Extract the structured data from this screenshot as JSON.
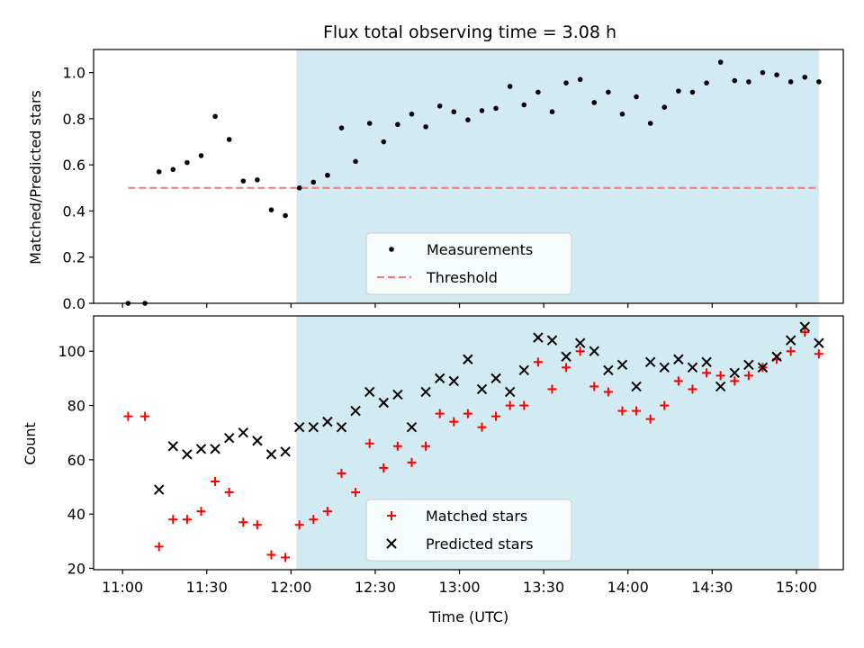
{
  "title": "Flux total observing time = 3.08 h",
  "xlabel": "Time (UTC)",
  "x_ticks": [
    "11:00",
    "11:30",
    "12:00",
    "12:30",
    "13:00",
    "13:30",
    "14:00",
    "14:30",
    "15:00"
  ],
  "shaded_region": {
    "start": "12:02",
    "end": "15:08",
    "color": "#add8e6"
  },
  "chart_data": [
    {
      "type": "scatter",
      "ylabel": "Matched/Predicted stars",
      "ylim": [
        0,
        1.1
      ],
      "y_ticks": [
        "0.0",
        "0.2",
        "0.4",
        "0.6",
        "0.8",
        "1.0"
      ],
      "threshold": {
        "name": "Threshold",
        "value": 0.5,
        "x_start": "11:02",
        "x_end": "15:08",
        "color": "#f08080"
      },
      "series": [
        {
          "name": "Measurements",
          "color": "#000000",
          "marker": "dot",
          "points": [
            [
              "11:02",
              0.0
            ],
            [
              "11:08",
              0.0
            ],
            [
              "11:13",
              0.57
            ],
            [
              "11:18",
              0.58
            ],
            [
              "11:23",
              0.61
            ],
            [
              "11:28",
              0.64
            ],
            [
              "11:33",
              0.81
            ],
            [
              "11:38",
              0.71
            ],
            [
              "11:43",
              0.53
            ],
            [
              "11:48",
              0.535
            ],
            [
              "11:53",
              0.405
            ],
            [
              "11:58",
              0.38
            ],
            [
              "12:03",
              0.5
            ],
            [
              "12:08",
              0.525
            ],
            [
              "12:13",
              0.555
            ],
            [
              "12:18",
              0.76
            ],
            [
              "12:23",
              0.615
            ],
            [
              "12:28",
              0.78
            ],
            [
              "12:33",
              0.7
            ],
            [
              "12:38",
              0.775
            ],
            [
              "12:43",
              0.82
            ],
            [
              "12:48",
              0.765
            ],
            [
              "12:53",
              0.855
            ],
            [
              "12:58",
              0.83
            ],
            [
              "13:03",
              0.795
            ],
            [
              "13:08",
              0.835
            ],
            [
              "13:13",
              0.845
            ],
            [
              "13:18",
              0.94
            ],
            [
              "13:23",
              0.86
            ],
            [
              "13:28",
              0.915
            ],
            [
              "13:33",
              0.83
            ],
            [
              "13:38",
              0.955
            ],
            [
              "13:43",
              0.97
            ],
            [
              "13:48",
              0.87
            ],
            [
              "13:53",
              0.915
            ],
            [
              "13:58",
              0.82
            ],
            [
              "14:03",
              0.895
            ],
            [
              "14:08",
              0.78
            ],
            [
              "14:13",
              0.85
            ],
            [
              "14:18",
              0.92
            ],
            [
              "14:23",
              0.915
            ],
            [
              "14:28",
              0.955
            ],
            [
              "14:33",
              1.045
            ],
            [
              "14:38",
              0.965
            ],
            [
              "14:43",
              0.96
            ],
            [
              "14:48",
              1.0
            ],
            [
              "14:53",
              0.99
            ],
            [
              "14:58",
              0.96
            ],
            [
              "15:03",
              0.98
            ],
            [
              "15:08",
              0.96
            ]
          ]
        }
      ]
    },
    {
      "type": "scatter",
      "ylabel": "Count",
      "ylim": [
        19.5,
        113
      ],
      "y_ticks": [
        "20",
        "40",
        "60",
        "80",
        "100"
      ],
      "series": [
        {
          "name": "Matched stars",
          "color": "#ff0000",
          "marker": "plus",
          "points": [
            [
              "11:02",
              76
            ],
            [
              "11:08",
              76
            ],
            [
              "11:13",
              28
            ],
            [
              "11:18",
              38
            ],
            [
              "11:23",
              38
            ],
            [
              "11:28",
              41
            ],
            [
              "11:33",
              52
            ],
            [
              "11:38",
              48
            ],
            [
              "11:43",
              37
            ],
            [
              "11:48",
              36
            ],
            [
              "11:53",
              25
            ],
            [
              "11:58",
              24
            ],
            [
              "12:03",
              36
            ],
            [
              "12:08",
              38
            ],
            [
              "12:13",
              41
            ],
            [
              "12:18",
              55
            ],
            [
              "12:23",
              48
            ],
            [
              "12:28",
              66
            ],
            [
              "12:33",
              57
            ],
            [
              "12:38",
              65
            ],
            [
              "12:43",
              59
            ],
            [
              "12:48",
              65
            ],
            [
              "12:53",
              77
            ],
            [
              "12:58",
              74
            ],
            [
              "13:03",
              77
            ],
            [
              "13:08",
              72
            ],
            [
              "13:13",
              76
            ],
            [
              "13:18",
              80
            ],
            [
              "13:23",
              80
            ],
            [
              "13:28",
              96
            ],
            [
              "13:33",
              86
            ],
            [
              "13:38",
              94
            ],
            [
              "13:43",
              100
            ],
            [
              "13:48",
              87
            ],
            [
              "13:53",
              85
            ],
            [
              "13:58",
              78
            ],
            [
              "14:03",
              78
            ],
            [
              "14:08",
              75
            ],
            [
              "14:13",
              80
            ],
            [
              "14:18",
              89
            ],
            [
              "14:23",
              86
            ],
            [
              "14:28",
              92
            ],
            [
              "14:33",
              91
            ],
            [
              "14:38",
              89
            ],
            [
              "14:43",
              91
            ],
            [
              "14:48",
              94
            ],
            [
              "14:53",
              97
            ],
            [
              "14:58",
              100
            ],
            [
              "15:03",
              107
            ],
            [
              "15:08",
              99
            ]
          ]
        },
        {
          "name": "Predicted stars",
          "color": "#000000",
          "marker": "x",
          "points": [
            [
              "11:13",
              49
            ],
            [
              "11:18",
              65
            ],
            [
              "11:23",
              62
            ],
            [
              "11:28",
              64
            ],
            [
              "11:33",
              64
            ],
            [
              "11:38",
              68
            ],
            [
              "11:43",
              70
            ],
            [
              "11:48",
              67
            ],
            [
              "11:53",
              62
            ],
            [
              "11:58",
              63
            ],
            [
              "12:03",
              72
            ],
            [
              "12:08",
              72
            ],
            [
              "12:13",
              74
            ],
            [
              "12:18",
              72
            ],
            [
              "12:23",
              78
            ],
            [
              "12:28",
              85
            ],
            [
              "12:33",
              81
            ],
            [
              "12:38",
              84
            ],
            [
              "12:43",
              72
            ],
            [
              "12:48",
              85
            ],
            [
              "12:53",
              90
            ],
            [
              "12:58",
              89
            ],
            [
              "13:03",
              97
            ],
            [
              "13:08",
              86
            ],
            [
              "13:13",
              90
            ],
            [
              "13:18",
              85
            ],
            [
              "13:23",
              93
            ],
            [
              "13:28",
              105
            ],
            [
              "13:33",
              104
            ],
            [
              "13:38",
              98
            ],
            [
              "13:43",
              103
            ],
            [
              "13:48",
              100
            ],
            [
              "13:53",
              93
            ],
            [
              "13:58",
              95
            ],
            [
              "14:03",
              87
            ],
            [
              "14:08",
              96
            ],
            [
              "14:13",
              94
            ],
            [
              "14:18",
              97
            ],
            [
              "14:23",
              94
            ],
            [
              "14:28",
              96
            ],
            [
              "14:33",
              87
            ],
            [
              "14:38",
              92
            ],
            [
              "14:43",
              95
            ],
            [
              "14:48",
              94
            ],
            [
              "14:53",
              98
            ],
            [
              "14:58",
              104
            ],
            [
              "15:03",
              109
            ],
            [
              "15:08",
              103
            ]
          ]
        }
      ]
    }
  ]
}
